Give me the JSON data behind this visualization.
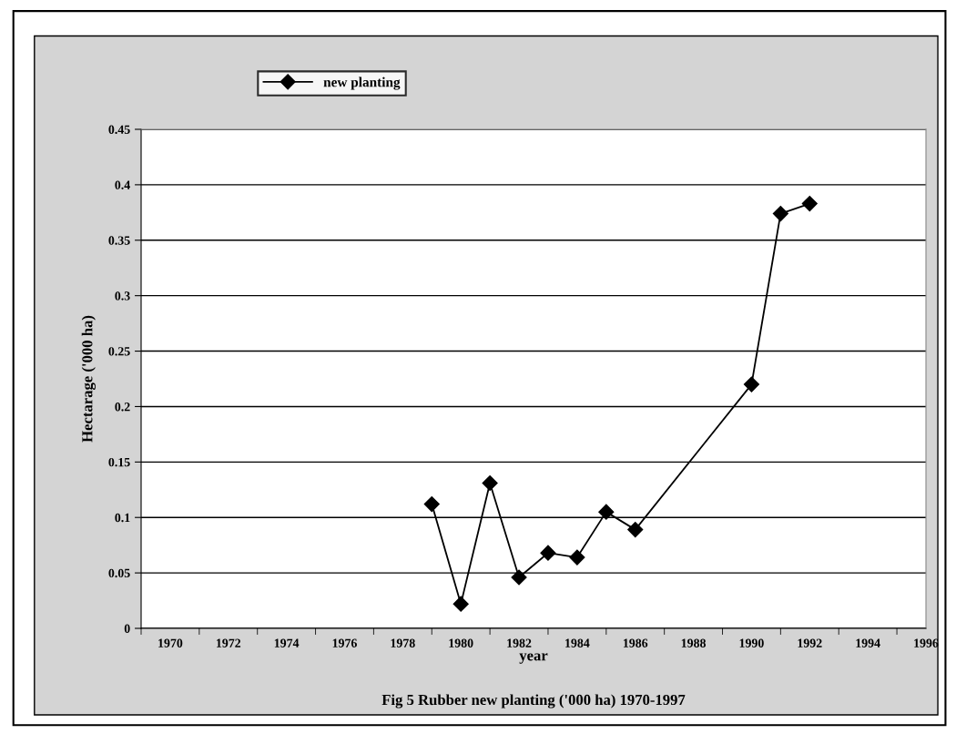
{
  "chart_data": {
    "type": "line",
    "title": "Fig 5 Rubber new planting ('000 ha) 1970-1997",
    "xlabel": "year",
    "ylabel": "Hectarage ('000 ha)",
    "x": [
      1979,
      1980,
      1981,
      1982,
      1983,
      1984,
      1985,
      1986,
      1990,
      1991,
      1992
    ],
    "series": [
      {
        "name": "new planting",
        "color": "#000000",
        "values": [
          0.112,
          0.022,
          0.131,
          0.046,
          0.068,
          0.064,
          0.105,
          0.089,
          0.22,
          0.374,
          0.383
        ]
      }
    ],
    "xlim": [
      1969,
      1996
    ],
    "xticks": [
      {
        "value": 1969,
        "label": null
      },
      1970,
      {
        "value": 1971,
        "label": null
      },
      1972,
      {
        "value": 1973,
        "label": null
      },
      1974,
      {
        "value": 1975,
        "label": null
      },
      1976,
      {
        "value": 1977,
        "label": null
      },
      1978,
      {
        "value": 1979,
        "label": null
      },
      1980,
      {
        "value": 1981,
        "label": null
      },
      1982,
      {
        "value": 1983,
        "label": null
      },
      1984,
      {
        "value": 1985,
        "label": null
      },
      1986,
      {
        "value": 1987,
        "label": null
      },
      1988,
      {
        "value": 1989,
        "label": null
      },
      1990,
      {
        "value": 1991,
        "label": null
      },
      1992,
      {
        "value": 1993,
        "label": null
      },
      1994,
      {
        "value": 1995,
        "label": null
      },
      1996
    ],
    "ylim": [
      0,
      0.45
    ],
    "yticks": [
      0,
      0.05,
      0.1,
      0.15,
      0.2,
      0.25,
      0.3,
      0.35,
      0.4,
      0.45
    ],
    "grid": "y",
    "legend": "top left",
    "marker": "diamond",
    "line_style": "solid"
  }
}
